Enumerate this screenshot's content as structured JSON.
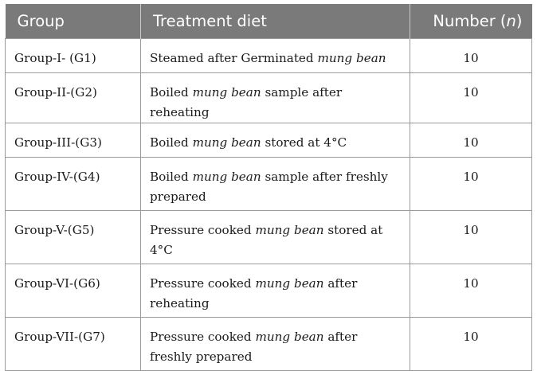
{
  "headers": [
    "Group",
    "Treatment diet",
    "Number (",
    "n",
    ")"
  ],
  "rows": [
    {
      "group": "Group-I- (G1)",
      "pre": "Steamed after Germinated ",
      "em": "mung bean",
      "post": "",
      "number": "10"
    },
    {
      "group": "Group-II-(G2)",
      "pre": "Boiled ",
      "em": "mung bean",
      "post": " sample after reheating",
      "number": "10"
    },
    {
      "group": "Group-III-(G3)",
      "pre": "Boiled ",
      "em": "mung bean",
      "post": " stored at 4°C",
      "number": "10"
    },
    {
      "group": "Group-IV-(G4)",
      "pre": "Boiled ",
      "em": "mung bean",
      "post": " sample after freshly prepared",
      "number": "10"
    },
    {
      "group": "Group-V-(G5)",
      "pre": "Pressure cooked ",
      "em": "mung bean",
      "post": " stored at 4°C",
      "number": "10"
    },
    {
      "group": "Group-VI-(G6)",
      "pre": "Pressure cooked ",
      "em": "mung bean",
      "post": " after reheating",
      "number": "10"
    },
    {
      "group": "Group-VII-(G7)",
      "pre": "Pressure cooked ",
      "em": "mung bean",
      "post": " after freshly prepared",
      "number": "10"
    }
  ]
}
